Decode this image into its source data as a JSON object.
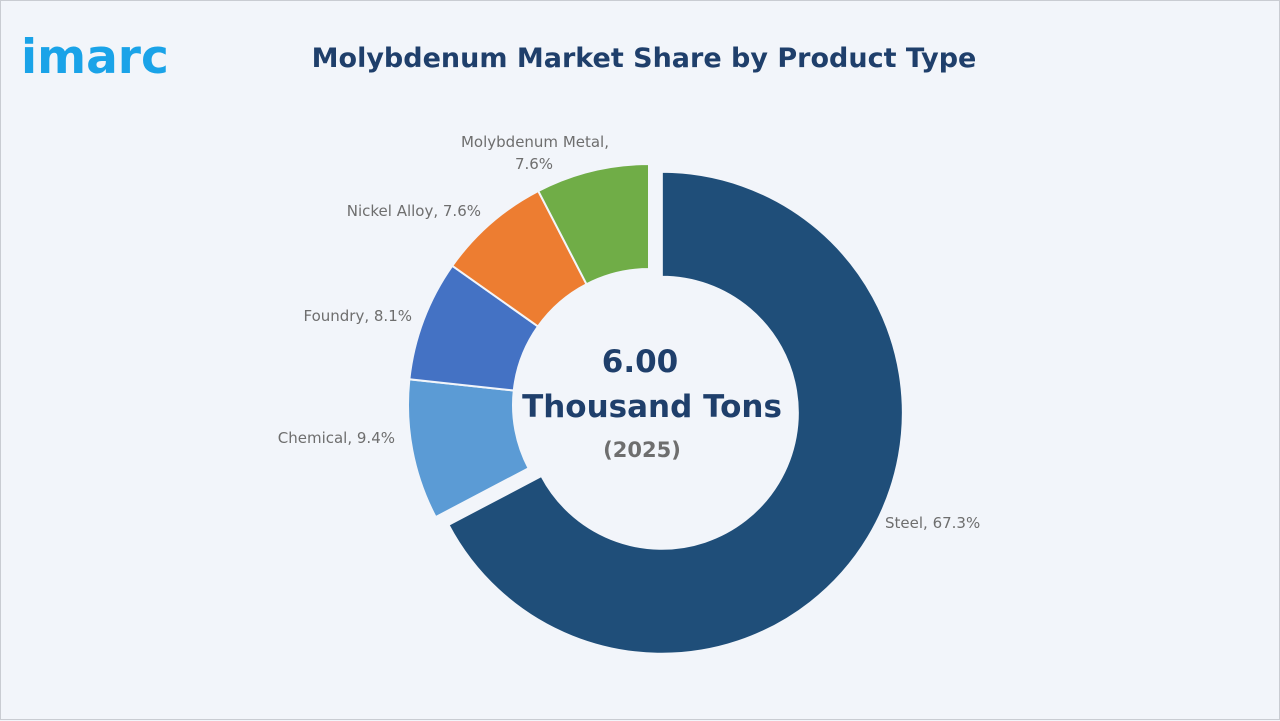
{
  "brand": {
    "logo_text": "imarc",
    "logo_color": "#1aa3e8"
  },
  "chart_data": {
    "type": "pie",
    "title": "Molybdenum Market Share by Product Type",
    "center": {
      "value_line1": "6.00",
      "value_line2": "Thousand Tons",
      "year": "(2025)"
    },
    "unit": "%",
    "slices": [
      {
        "label": "Steel",
        "value": 67.3,
        "display": "Steel, 67.3%",
        "color": "#1f4e79"
      },
      {
        "label": "Chemical",
        "value": 9.4,
        "display": "Chemical, 9.4%",
        "color": "#5b9bd5"
      },
      {
        "label": "Foundry",
        "value": 8.1,
        "display": "Foundry, 8.1%",
        "color": "#4472c4"
      },
      {
        "label": "Nickel Alloy",
        "value": 7.6,
        "display": "Nickel Alloy, 7.6%",
        "color": "#ed7d31"
      },
      {
        "label": "Molybdenum Metal",
        "value": 7.6,
        "display_lines": [
          "Molybdenum Metal,",
          "7.6%"
        ],
        "color": "#70ad47"
      }
    ],
    "legend": "none",
    "exploded": "Steel"
  }
}
